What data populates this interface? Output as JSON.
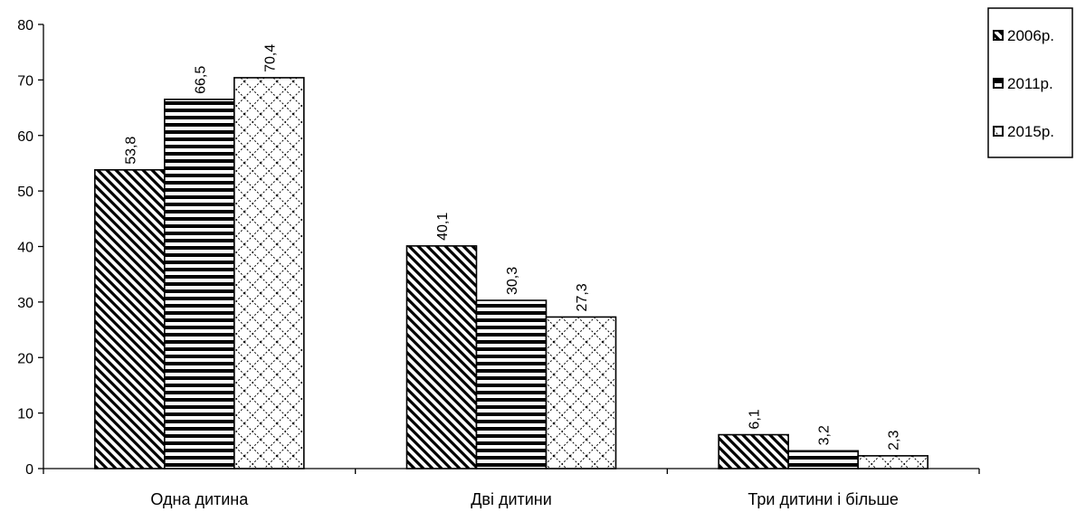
{
  "chart_data": {
    "type": "bar",
    "categories": [
      "Одна дитина",
      "Дві дитини",
      "Три дитини і більше"
    ],
    "series": [
      {
        "name": "2006р.",
        "values": [
          53.8,
          40.1,
          6.1
        ],
        "labels": [
          "53,8",
          "40,1",
          "6,1"
        ],
        "pattern": "diagonal"
      },
      {
        "name": "2011р.",
        "values": [
          66.5,
          30.3,
          3.2
        ],
        "labels": [
          "66,5",
          "30,3",
          "3,2"
        ],
        "pattern": "horizontal"
      },
      {
        "name": "2015р.",
        "values": [
          70.4,
          27.3,
          2.3
        ],
        "labels": [
          "70,4",
          "27,3",
          "2,3"
        ],
        "pattern": "crosshatch"
      }
    ],
    "ylim": [
      0,
      80
    ],
    "yticks": [
      "0",
      "10",
      "20",
      "30",
      "40",
      "50",
      "60",
      "70",
      "80"
    ],
    "legend_position": "top-right",
    "grid": false
  }
}
